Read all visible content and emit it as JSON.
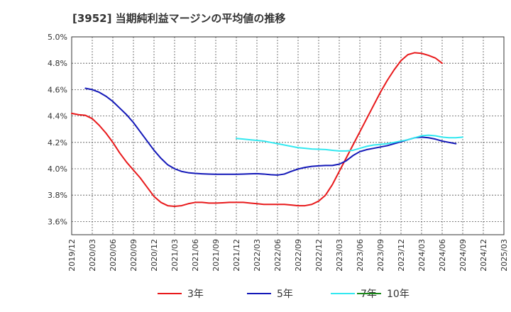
{
  "chart_data": {
    "type": "line",
    "title": "[3952]  当期純利益マージンの平均値の推移",
    "xlabel": "",
    "ylabel": "",
    "ylim": [
      3.5,
      5.0
    ],
    "grid": true,
    "legend_position": "bottom",
    "y_ticks": [
      3.6,
      3.8,
      4.0,
      4.2,
      4.4,
      4.6,
      4.8,
      5.0
    ],
    "y_tick_labels": [
      "3.6%",
      "3.8%",
      "4.0%",
      "4.2%",
      "4.4%",
      "4.6%",
      "4.8%",
      "5.0%"
    ],
    "x_tick_labels": [
      "2019/12",
      "2020/03",
      "2020/06",
      "2020/09",
      "2020/12",
      "2021/03",
      "2021/06",
      "2021/09",
      "2021/12",
      "2022/03",
      "2022/06",
      "2022/09",
      "2022/12",
      "2023/03",
      "2023/06",
      "2023/09",
      "2023/12",
      "2024/03",
      "2024/06",
      "2024/09",
      "2024/12",
      "2025/03"
    ],
    "series": [
      {
        "name": "3年",
        "color": "#e8191b",
        "start_index": 0,
        "values": [
          4.42,
          4.41,
          4.405,
          4.38,
          4.33,
          4.27,
          4.2,
          4.12,
          4.05,
          3.99,
          3.93,
          3.86,
          3.79,
          3.745,
          3.72,
          3.715,
          3.72,
          3.735,
          3.745,
          3.745,
          3.74,
          3.74,
          3.742,
          3.745,
          3.745,
          3.745,
          3.74,
          3.735,
          3.73,
          3.73,
          3.73,
          3.73,
          3.725,
          3.72,
          3.72,
          3.73,
          3.755,
          3.8,
          3.88,
          3.98,
          4.08,
          4.18,
          4.28,
          4.38,
          4.48,
          4.58,
          4.67,
          4.75,
          4.82,
          4.865,
          4.88,
          4.875,
          4.86,
          4.84,
          4.8
        ]
      },
      {
        "name": "5年",
        "color": "#1318b8",
        "start_index": 2,
        "values": [
          4.61,
          4.6,
          4.58,
          4.55,
          4.51,
          4.46,
          4.41,
          4.35,
          4.28,
          4.21,
          4.14,
          4.08,
          4.03,
          4.0,
          3.98,
          3.97,
          3.965,
          3.962,
          3.96,
          3.958,
          3.958,
          3.958,
          3.958,
          3.96,
          3.962,
          3.963,
          3.96,
          3.955,
          3.952,
          3.96,
          3.98,
          3.998,
          4.01,
          4.018,
          4.022,
          4.025,
          4.025,
          4.035,
          4.06,
          4.1,
          4.13,
          4.145,
          4.155,
          4.165,
          4.175,
          4.19,
          4.205,
          4.22,
          4.235,
          4.24,
          4.235,
          4.225,
          4.21,
          4.2,
          4.19
        ]
      },
      {
        "name": "7年",
        "color": "#33e8f0",
        "start_index": 24,
        "values": [
          4.23,
          4.225,
          4.22,
          4.215,
          4.21,
          4.2,
          4.19,
          4.18,
          4.17,
          4.16,
          4.155,
          4.15,
          4.148,
          4.146,
          4.14,
          4.135,
          4.135,
          4.14,
          4.155,
          4.17,
          4.18,
          4.185,
          4.19,
          4.2,
          4.21,
          4.22,
          4.235,
          4.25,
          4.255,
          4.25,
          4.24,
          4.235,
          4.235,
          4.24
        ]
      },
      {
        "name": "10年",
        "color": "#1a8a1a",
        "start_index": 0,
        "values": []
      }
    ]
  }
}
